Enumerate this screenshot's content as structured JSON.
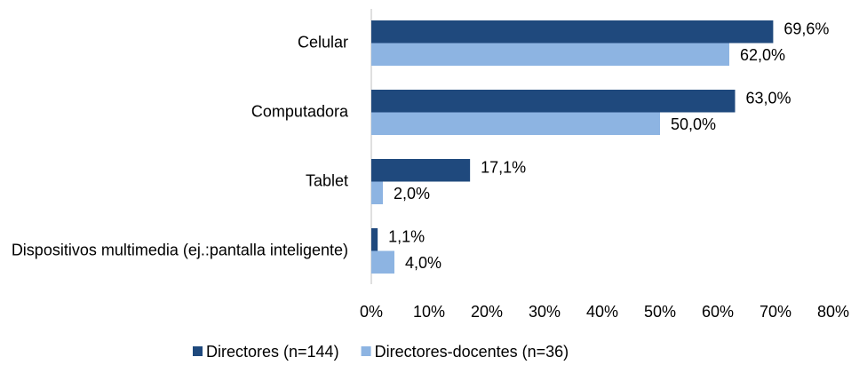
{
  "chart_data": {
    "type": "bar",
    "orientation": "horizontal",
    "categories": [
      "Celular",
      "Computadora",
      "Tablet",
      "Dispositivos multimedia (ej.:pantalla inteligente)"
    ],
    "series": [
      {
        "name": "Directores (n=144)",
        "color": "#1f497d",
        "values": [
          69.6,
          63.0,
          17.1,
          1.1
        ],
        "value_labels": [
          "69,6%",
          "63,0%",
          "17,1%",
          "1,1%"
        ]
      },
      {
        "name": "Directores-docentes (n=36)",
        "color": "#8db4e2",
        "values": [
          62.0,
          50.0,
          2.0,
          4.0
        ],
        "value_labels": [
          "62,0%",
          "50,0%",
          "2,0%",
          "4,0%"
        ]
      }
    ],
    "xlim": [
      0,
      80
    ],
    "xticks": [
      {
        "value": 0,
        "label": "0%"
      },
      {
        "value": 10,
        "label": "10%"
      },
      {
        "value": 20,
        "label": "20%"
      },
      {
        "value": 30,
        "label": "30%"
      },
      {
        "value": 40,
        "label": "40%"
      },
      {
        "value": 50,
        "label": "50%"
      },
      {
        "value": 60,
        "label": "60%"
      },
      {
        "value": 70,
        "label": "70%"
      },
      {
        "value": 80,
        "label": "80%"
      }
    ],
    "legend": "bottom"
  }
}
